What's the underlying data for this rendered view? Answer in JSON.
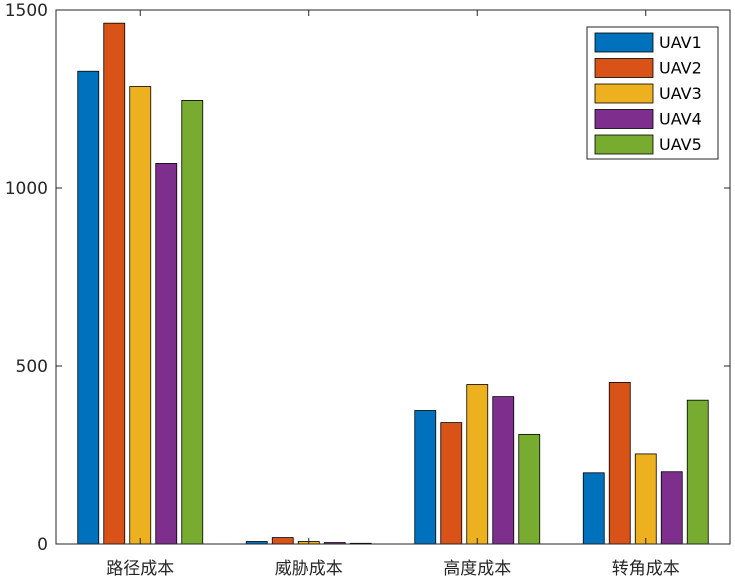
{
  "chart_data": {
    "type": "bar",
    "categories": [
      "路径成本",
      "威胁成本",
      "高度成本",
      "转角成本"
    ],
    "series": [
      {
        "name": "UAV1",
        "color": "#0072BD",
        "values": [
          1328,
          7,
          375,
          200
        ]
      },
      {
        "name": "UAV2",
        "color": "#D95319",
        "values": [
          1463,
          18,
          341,
          454
        ]
      },
      {
        "name": "UAV3",
        "color": "#EDB120",
        "values": [
          1285,
          7,
          448,
          253
        ]
      },
      {
        "name": "UAV4",
        "color": "#7E2F8E",
        "values": [
          1069,
          4,
          414,
          203
        ]
      },
      {
        "name": "UAV5",
        "color": "#77AC30",
        "values": [
          1246,
          2,
          308,
          404
        ]
      }
    ],
    "yticks": [
      0,
      500,
      1000,
      1500
    ],
    "ylim": [
      0,
      1500
    ],
    "title": "",
    "xlabel": "",
    "ylabel": "",
    "legend_position": "top-right",
    "grid": false
  }
}
